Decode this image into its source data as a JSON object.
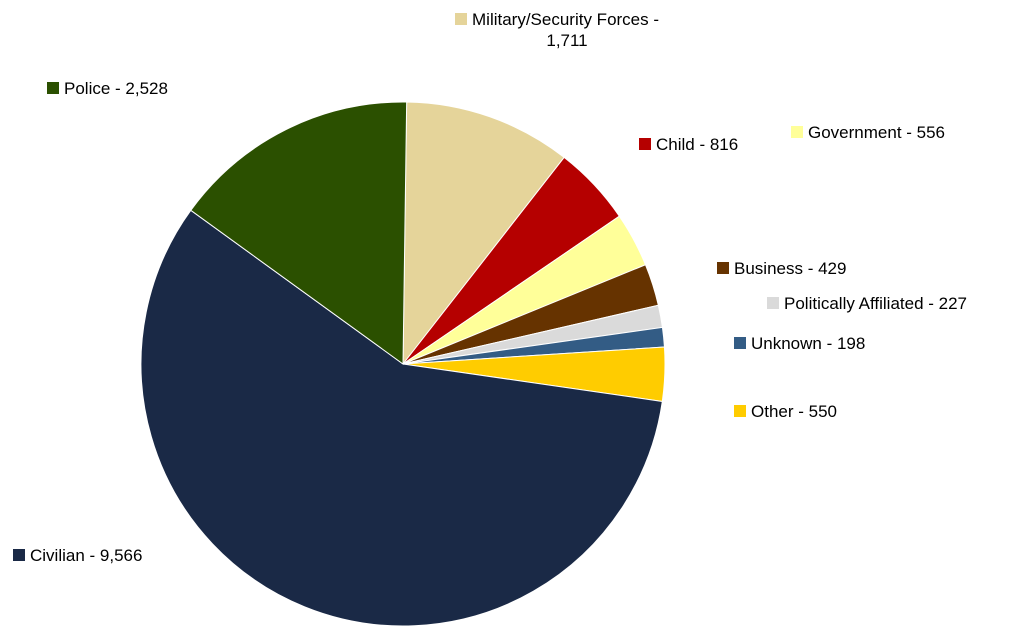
{
  "chart_data": {
    "type": "pie",
    "title": "",
    "start_angle_deg": 0.8,
    "direction": "clockwise",
    "slices": [
      {
        "key": "military",
        "label_lines": [
          "Military/Security Forces -",
          "1,711"
        ],
        "value": 1711,
        "color": "#E5D49A"
      },
      {
        "key": "child",
        "label_lines": [
          "Child - 816"
        ],
        "value": 816,
        "color": "#B50000"
      },
      {
        "key": "government",
        "label_lines": [
          "Government - 556"
        ],
        "value": 556,
        "color": "#FFFF99"
      },
      {
        "key": "business",
        "label_lines": [
          "Business - 429"
        ],
        "value": 429,
        "color": "#663300"
      },
      {
        "key": "political",
        "label_lines": [
          "Politically Affiliated - 227"
        ],
        "value": 227,
        "color": "#DADADA"
      },
      {
        "key": "unknown",
        "label_lines": [
          "Unknown - 198"
        ],
        "value": 198,
        "color": "#335C85"
      },
      {
        "key": "other",
        "label_lines": [
          "Other - 550"
        ],
        "value": 550,
        "color": "#FFCC00"
      },
      {
        "key": "civilian",
        "label_lines": [
          "Civilian - 9,566"
        ],
        "value": 9566,
        "color": "#1A2946"
      },
      {
        "key": "police",
        "label_lines": [
          "Police - 2,528"
        ],
        "value": 2528,
        "color": "#2B5000"
      }
    ]
  }
}
